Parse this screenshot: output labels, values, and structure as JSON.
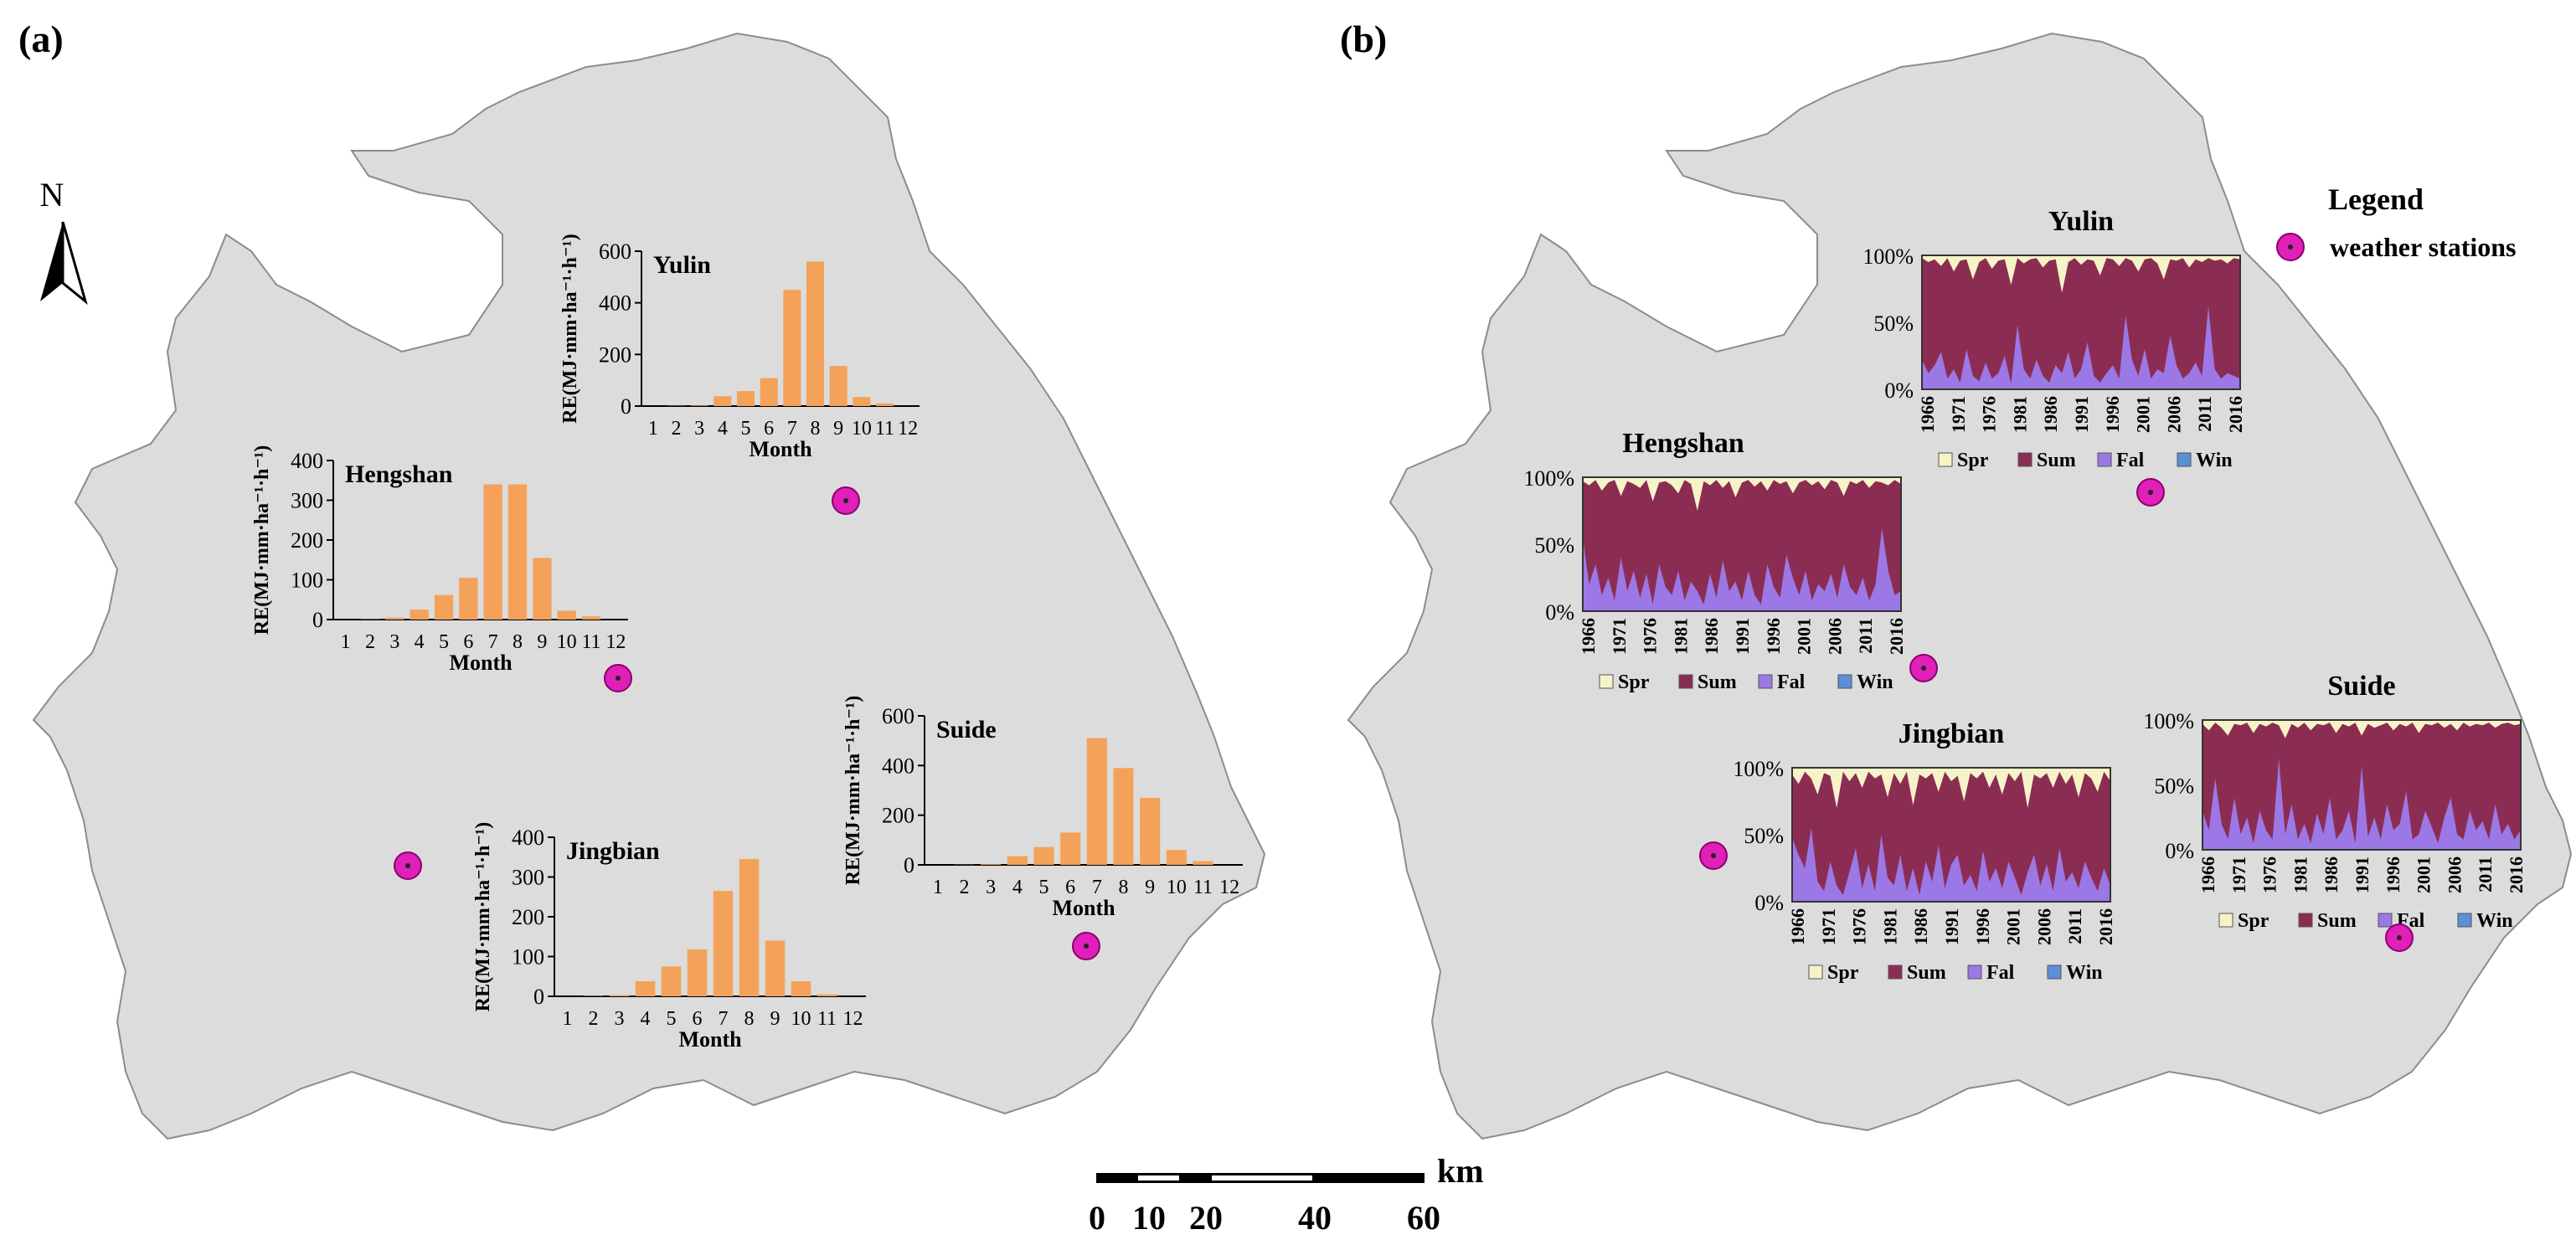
{
  "colors": {
    "region": "#dcdcdc",
    "region_stroke": "#8c8c8c",
    "bar": "#f4a259",
    "spr": "#f7f3c8",
    "sum": "#8b2d52",
    "fal": "#9b78e6",
    "win": "#5b8fd6",
    "station": "#e020b8"
  },
  "panel_labels": {
    "a": "(a)",
    "b": "(b)"
  },
  "north": {
    "label": "N"
  },
  "legend": {
    "title": "Legend",
    "item": "weather stations"
  },
  "scalebar": {
    "unit": "km",
    "ticks": [
      "0",
      "10",
      "20",
      "40",
      "60"
    ]
  },
  "chart_data": [
    {
      "type": "bar",
      "panel": "a",
      "title": "Yulin",
      "categories": [
        "1",
        "2",
        "3",
        "4",
        "5",
        "6",
        "7",
        "8",
        "9",
        "10",
        "11",
        "12"
      ],
      "values": [
        0,
        1,
        2,
        38,
        58,
        108,
        450,
        560,
        155,
        35,
        10,
        0
      ],
      "ylabel": "RE(MJ·mm·ha⁻¹·h⁻¹)",
      "xlabel": "Month",
      "ylim": [
        0,
        600
      ],
      "yticks": [
        "0",
        "200",
        "400",
        "600"
      ]
    },
    {
      "type": "bar",
      "panel": "a",
      "title": "Hengshan",
      "categories": [
        "1",
        "2",
        "3",
        "4",
        "5",
        "6",
        "7",
        "8",
        "9",
        "10",
        "11",
        "12"
      ],
      "values": [
        0,
        1,
        5,
        25,
        62,
        105,
        340,
        340,
        155,
        22,
        8,
        0
      ],
      "ylabel": "RE(MJ·mm·ha⁻¹·h⁻¹)",
      "xlabel": "Month",
      "ylim": [
        0,
        400
      ],
      "yticks": [
        "0",
        "100",
        "200",
        "300",
        "400"
      ]
    },
    {
      "type": "bar",
      "panel": "a",
      "title": "Suide",
      "categories": [
        "1",
        "2",
        "3",
        "4",
        "5",
        "6",
        "7",
        "8",
        "9",
        "10",
        "11",
        "12"
      ],
      "values": [
        0,
        1,
        3,
        35,
        72,
        130,
        510,
        390,
        270,
        60,
        15,
        0
      ],
      "ylabel": "RE(MJ·mm·ha⁻¹·h⁻¹)",
      "xlabel": "Month",
      "ylim": [
        0,
        600
      ],
      "yticks": [
        "0",
        "200",
        "400",
        "600"
      ]
    },
    {
      "type": "bar",
      "panel": "a",
      "title": "Jingbian",
      "categories": [
        "1",
        "2",
        "3",
        "4",
        "5",
        "6",
        "7",
        "8",
        "9",
        "10",
        "11",
        "12"
      ],
      "values": [
        0,
        1,
        3,
        38,
        75,
        118,
        265,
        345,
        140,
        38,
        5,
        0
      ],
      "ylabel": "RE(MJ·mm·ha⁻¹·h⁻¹)",
      "xlabel": "Month",
      "ylim": [
        0,
        400
      ],
      "yticks": [
        "0",
        "100",
        "200",
        "300",
        "400"
      ]
    },
    {
      "type": "area",
      "panel": "b",
      "stacked": true,
      "normalized": true,
      "title": "Yulin",
      "x_labels": [
        "1966",
        "1971",
        "1976",
        "1981",
        "1986",
        "1991",
        "1996",
        "2001",
        "2006",
        "2011",
        "2016"
      ],
      "yticks": [
        "0%",
        "50%",
        "100%"
      ],
      "series": [
        {
          "name": "Spr",
          "key": "spr"
        },
        {
          "name": "Sum",
          "key": "sum"
        },
        {
          "name": "Fal",
          "key": "fal"
        },
        {
          "name": "Win",
          "key": "win"
        }
      ],
      "fal": [
        22,
        12,
        18,
        28,
        8,
        15,
        5,
        30,
        10,
        6,
        20,
        8,
        12,
        25,
        4,
        48,
        15,
        8,
        22,
        10,
        5,
        18,
        12,
        28,
        8,
        15,
        35,
        10,
        5,
        12,
        18,
        8,
        55,
        22,
        10,
        30,
        8,
        15,
        12,
        40,
        18,
        8,
        12,
        20,
        10,
        62,
        15,
        8,
        12,
        10,
        8
      ],
      "spr": [
        2,
        5,
        3,
        8,
        2,
        12,
        4,
        3,
        18,
        5,
        2,
        10,
        4,
        3,
        22,
        2,
        6,
        3,
        2,
        9,
        4,
        3,
        28,
        5,
        2,
        7,
        3,
        4,
        15,
        2,
        3,
        8,
        2,
        4,
        12,
        3,
        2,
        6,
        18,
        3,
        4,
        2,
        9,
        3,
        5,
        2,
        4,
        3,
        6,
        2,
        3
      ]
    },
    {
      "type": "area",
      "panel": "b",
      "stacked": true,
      "normalized": true,
      "title": "Hengshan",
      "x_labels": [
        "1966",
        "1971",
        "1976",
        "1981",
        "1986",
        "1991",
        "1996",
        "2001",
        "2006",
        "2011",
        "2016"
      ],
      "yticks": [
        "0%",
        "50%",
        "100%"
      ],
      "series": [
        {
          "name": "Spr",
          "key": "spr"
        },
        {
          "name": "Sum",
          "key": "sum"
        },
        {
          "name": "Fal",
          "key": "fal"
        },
        {
          "name": "Win",
          "key": "win"
        }
      ],
      "fal": [
        55,
        20,
        35,
        12,
        25,
        8,
        40,
        15,
        30,
        10,
        28,
        5,
        35,
        18,
        12,
        30,
        8,
        22,
        15,
        5,
        28,
        10,
        38,
        15,
        22,
        8,
        30,
        12,
        5,
        35,
        18,
        10,
        42,
        25,
        12,
        30,
        8,
        20,
        15,
        28,
        10,
        35,
        18,
        12,
        25,
        8,
        20,
        62,
        30,
        12,
        15
      ],
      "spr": [
        3,
        6,
        2,
        10,
        4,
        2,
        14,
        3,
        5,
        8,
        2,
        18,
        4,
        3,
        6,
        12,
        2,
        5,
        25,
        3,
        6,
        2,
        8,
        3,
        15,
        4,
        2,
        7,
        3,
        10,
        2,
        5,
        3,
        12,
        4,
        2,
        6,
        3,
        9,
        2,
        4,
        14,
        3,
        5,
        2,
        8,
        3,
        4,
        6,
        2,
        5
      ]
    },
    {
      "type": "area",
      "panel": "b",
      "stacked": true,
      "normalized": true,
      "title": "Jingbian",
      "x_labels": [
        "1966",
        "1971",
        "1976",
        "1981",
        "1986",
        "1991",
        "1996",
        "2001",
        "2006",
        "2011",
        "2016"
      ],
      "yticks": [
        "0%",
        "50%",
        "100%"
      ],
      "series": [
        {
          "name": "Spr",
          "key": "spr"
        },
        {
          "name": "Sum",
          "key": "sum"
        },
        {
          "name": "Fal",
          "key": "fal"
        },
        {
          "name": "Win",
          "key": "win"
        }
      ],
      "fal": [
        48,
        35,
        25,
        55,
        15,
        8,
        30,
        12,
        5,
        22,
        40,
        10,
        28,
        8,
        50,
        18,
        12,
        35,
        8,
        25,
        5,
        30,
        15,
        42,
        10,
        28,
        35,
        12,
        20,
        8,
        38,
        15,
        25,
        10,
        30,
        18,
        5,
        22,
        35,
        12,
        28,
        8,
        40,
        15,
        22,
        10,
        30,
        18,
        8,
        25,
        12
      ],
      "spr": [
        5,
        12,
        3,
        8,
        20,
        4,
        6,
        30,
        3,
        10,
        4,
        15,
        3,
        8,
        5,
        22,
        4,
        12,
        3,
        28,
        5,
        8,
        4,
        18,
        3,
        10,
        6,
        25,
        4,
        8,
        3,
        15,
        5,
        20,
        4,
        10,
        3,
        30,
        5,
        8,
        4,
        15,
        3,
        12,
        5,
        22,
        4,
        8,
        18,
        3,
        10
      ]
    },
    {
      "type": "area",
      "panel": "b",
      "stacked": true,
      "normalized": true,
      "title": "Suide",
      "x_labels": [
        "1966",
        "1971",
        "1976",
        "1981",
        "1986",
        "1991",
        "1996",
        "2001",
        "2006",
        "2011",
        "2016"
      ],
      "yticks": [
        "0%",
        "50%",
        "100%"
      ],
      "series": [
        {
          "name": "Spr",
          "key": "spr"
        },
        {
          "name": "Sum",
          "key": "sum"
        },
        {
          "name": "Fal",
          "key": "fal"
        },
        {
          "name": "Win",
          "key": "win"
        }
      ],
      "fal": [
        30,
        15,
        55,
        20,
        8,
        40,
        12,
        25,
        5,
        30,
        15,
        8,
        70,
        12,
        35,
        8,
        20,
        5,
        28,
        12,
        40,
        8,
        15,
        30,
        5,
        65,
        10,
        25,
        8,
        35,
        15,
        20,
        45,
        8,
        12,
        30,
        18,
        5,
        25,
        40,
        12,
        8,
        30,
        15,
        22,
        8,
        35,
        12,
        20,
        8,
        15
      ],
      "spr": [
        3,
        8,
        2,
        6,
        12,
        3,
        4,
        2,
        10,
        3,
        5,
        2,
        4,
        14,
        3,
        6,
        2,
        8,
        3,
        4,
        2,
        10,
        3,
        5,
        2,
        12,
        3,
        6,
        4,
        2,
        8,
        3,
        5,
        2,
        10,
        3,
        4,
        2,
        6,
        3,
        8,
        2,
        5,
        3,
        4,
        2,
        6,
        3,
        2,
        4,
        3
      ]
    }
  ]
}
